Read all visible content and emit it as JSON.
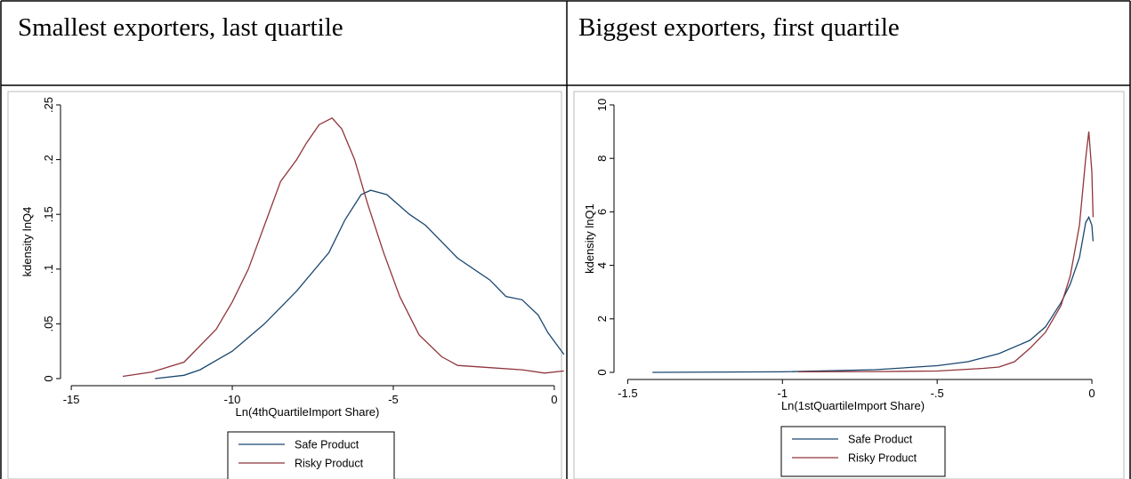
{
  "header": {
    "left": "Smallest exporters, last quartile",
    "right": "Biggest exporters, first quartile"
  },
  "chart_data": [
    {
      "type": "line",
      "y_label": "kdensity lnQ4",
      "x_label": "Ln(4thQuartileImport Share)",
      "xlim": [
        -15.5,
        0.5
      ],
      "ylim": [
        0,
        0.25
      ],
      "xticks": [
        -15,
        -10,
        -5,
        0
      ],
      "yticks": [
        0,
        {
          "value": 0.05,
          "label": ".05"
        },
        {
          "value": 0.1,
          "label": ".1"
        },
        {
          "value": 0.15,
          "label": ".15"
        },
        {
          "value": 0.2,
          "label": ".2"
        },
        {
          "value": 0.25,
          "label": ".25"
        }
      ],
      "series": [
        {
          "name": "Safe Product",
          "color": "#1a476f",
          "x": [
            -12.4,
            -11.5,
            -11,
            -10,
            -9,
            -8,
            -7,
            -6.5,
            -6,
            -5.7,
            -5.2,
            -4.5,
            -4,
            -3,
            -2,
            -1.5,
            -1,
            -0.5,
            -0.2,
            0.3
          ],
          "values": [
            0,
            0.003,
            0.008,
            0.025,
            0.05,
            0.08,
            0.115,
            0.145,
            0.168,
            0.172,
            0.168,
            0.15,
            0.14,
            0.11,
            0.09,
            0.075,
            0.072,
            0.058,
            0.042,
            0.022
          ]
        },
        {
          "name": "Risky Product",
          "color": "#90353b",
          "x": [
            -13.4,
            -12.5,
            -11.5,
            -10.5,
            -10,
            -9.5,
            -9,
            -8.5,
            -8,
            -7.7,
            -7.3,
            -6.9,
            -6.6,
            -6.2,
            -5.8,
            -5.3,
            -4.8,
            -4.2,
            -3.5,
            -3,
            -2,
            -1,
            -0.3,
            0.3
          ],
          "values": [
            0.002,
            0.006,
            0.015,
            0.045,
            0.07,
            0.1,
            0.14,
            0.18,
            0.2,
            0.215,
            0.232,
            0.238,
            0.228,
            0.2,
            0.16,
            0.115,
            0.075,
            0.04,
            0.02,
            0.012,
            0.01,
            0.008,
            0.005,
            0.007
          ]
        }
      ]
    },
    {
      "type": "line",
      "y_label": "kdensity lnQ1",
      "x_label": "Ln(1stQuartileImport Share)",
      "xlim": [
        -1.55,
        0.02
      ],
      "ylim": [
        0,
        10
      ],
      "xticks": [
        -1.5,
        -1,
        {
          "value": -0.5,
          "label": "-.5"
        },
        0
      ],
      "yticks": [
        0,
        2,
        4,
        6,
        8,
        10
      ],
      "series": [
        {
          "name": "Safe Product",
          "color": "#1a476f",
          "x": [
            -1.42,
            -1,
            -0.7,
            -0.5,
            -0.4,
            -0.3,
            -0.2,
            -0.15,
            -0.1,
            -0.07,
            -0.04,
            -0.02,
            -0.01,
            0,
            0.004
          ],
          "values": [
            0,
            0.02,
            0.1,
            0.25,
            0.4,
            0.7,
            1.2,
            1.7,
            2.6,
            3.3,
            4.3,
            5.6,
            5.8,
            5.5,
            4.9
          ]
        },
        {
          "name": "Risky Product",
          "color": "#90353b",
          "x": [
            -0.95,
            -0.7,
            -0.5,
            -0.35,
            -0.3,
            -0.25,
            -0.2,
            -0.15,
            -0.1,
            -0.07,
            -0.04,
            -0.02,
            -0.01,
            0,
            0.004
          ],
          "values": [
            0.02,
            0.03,
            0.05,
            0.15,
            0.2,
            0.4,
            0.9,
            1.5,
            2.5,
            3.6,
            5.5,
            8,
            9,
            7.5,
            5.8
          ]
        }
      ]
    }
  ]
}
